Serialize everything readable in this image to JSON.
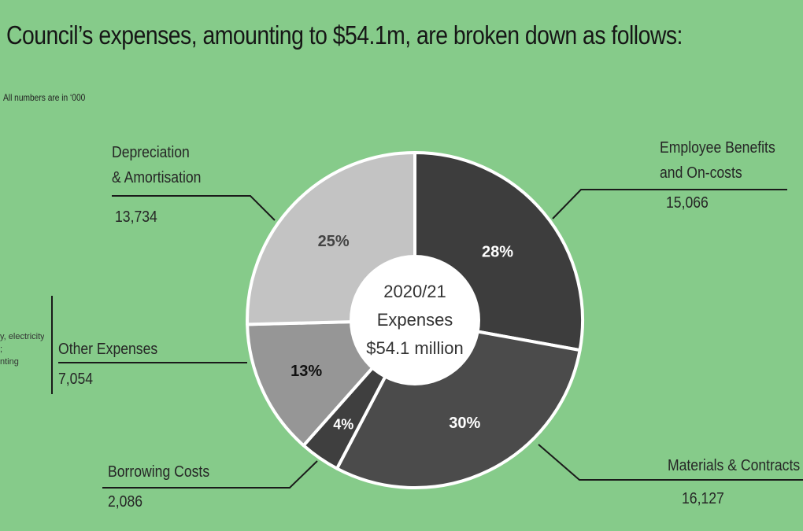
{
  "title": "Council’s expenses, amounting to $54.1m, are broken down as follows:",
  "note": "All numbers are in ‘000",
  "cut_note": [
    "y, electricity,",
    ";",
    "nting"
  ],
  "center": [
    "2020/21",
    "Expenses",
    "$54.1 million"
  ],
  "colors": {
    "background": "#86cb8a",
    "employee": "#3d3d3d",
    "materials": "#4b4b4b",
    "borrowing": "#3f3f3f",
    "other": "#969696",
    "depreciation": "#c3c3c3"
  },
  "chart_data": {
    "type": "pie",
    "title": "Council’s expenses, amounting to $54.1m, are broken down as follows:",
    "units": "All numbers are in ‘000",
    "slices": [
      {
        "key": "employee",
        "label": "Employee Benefits and On-costs",
        "label_lines": [
          "Employee Benefits",
          "and On-costs"
        ],
        "value": 15066,
        "value_text": "15,066",
        "percent": 28,
        "pct_text": "28%",
        "color": "#3d3d3d",
        "pct_color": "#ffffff"
      },
      {
        "key": "materials",
        "label": "Materials & Contracts",
        "label_lines": [
          "Materials & Contracts"
        ],
        "value": 16127,
        "value_text": "16,127",
        "percent": 30,
        "pct_text": "30%",
        "color": "#4b4b4b",
        "pct_color": "#ffffff"
      },
      {
        "key": "borrowing",
        "label": "Borrowing Costs",
        "label_lines": [
          "Borrowing Costs"
        ],
        "value": 2086,
        "value_text": "2,086",
        "percent": 4,
        "pct_text": "4%",
        "color": "#3f3f3f",
        "pct_color": "#ffffff"
      },
      {
        "key": "other",
        "label": "Other Expenses",
        "label_lines": [
          "Other Expenses"
        ],
        "value": 7054,
        "value_text": "7,054",
        "percent": 13,
        "pct_text": "13%",
        "color": "#969696",
        "pct_color": "#111111"
      },
      {
        "key": "depreciation",
        "label": "Depreciation & Amortisation",
        "label_lines": [
          "Depreciation",
          "& Amortisation"
        ],
        "value": 13734,
        "value_text": "13,734",
        "percent": 25,
        "pct_text": "25%",
        "color": "#c3c3c3",
        "pct_color": "#444444"
      }
    ]
  }
}
